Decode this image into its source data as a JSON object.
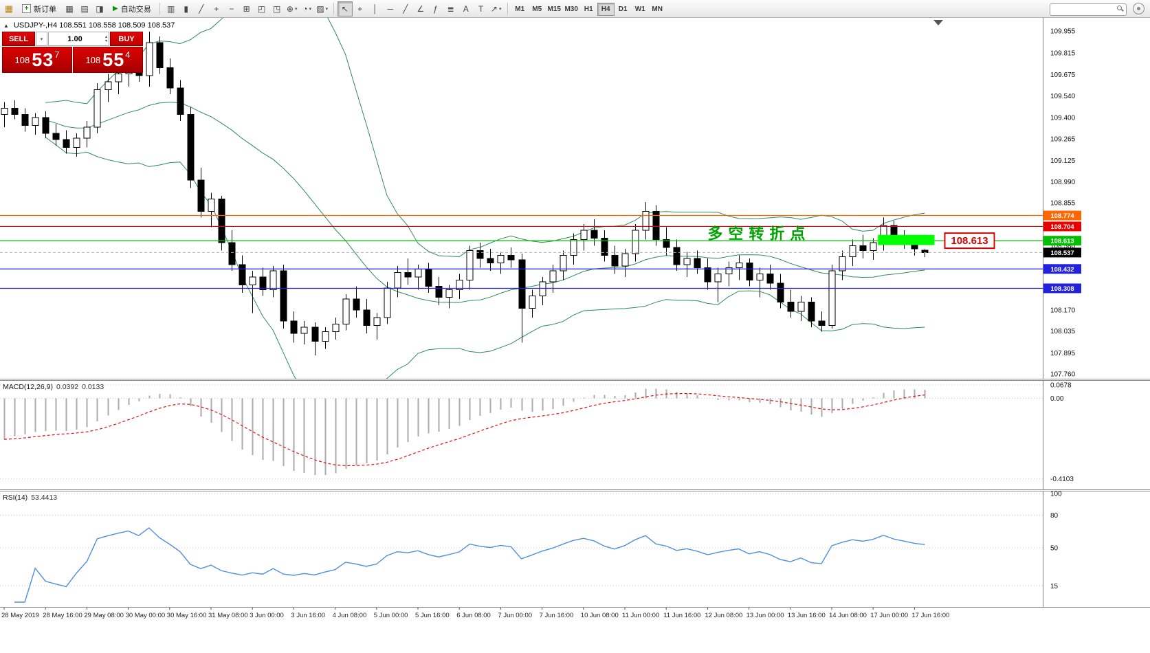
{
  "toolbar": {
    "new_order_label": "新订单",
    "autotrading_label": "自动交易",
    "left_icons": [
      "new-chart",
      "profiles",
      "market-watch"
    ],
    "chart_buttons": [
      "bar-chart",
      "candlesticks",
      "line-chart",
      "zoom-in",
      "zoom-out",
      "tile-windows",
      "arrange-windows",
      "cascade-windows",
      "indicators",
      "periods",
      "templates"
    ],
    "tool_buttons": [
      "cursor",
      "crosshair",
      "vertical-line",
      "horizontal-line",
      "trendline",
      "equidistant-channel",
      "fibonacci",
      "cycle-lines",
      "text",
      "text-label",
      "arrows"
    ],
    "dropdown_buttons": [
      "indicators",
      "periods",
      "templates",
      "arrows"
    ],
    "active_tool": "cursor",
    "timeframes": [
      "M1",
      "M5",
      "M15",
      "M30",
      "H1",
      "H4",
      "D1",
      "W1",
      "MN"
    ],
    "active_timeframe": "H4"
  },
  "quote_panel": {
    "sell_label": "SELL",
    "buy_label": "BUY",
    "volume": "1.00",
    "sell_price": {
      "prefix": "108",
      "big": "53",
      "sup": "7"
    },
    "buy_price": {
      "prefix": "108",
      "big": "55",
      "sup": "4"
    }
  },
  "symbol_header": "USDJPY-,H4  108.551 108.558 108.509 108.537",
  "macd": {
    "label": "MACD(12,26,9)",
    "value_main": "0.0392",
    "value_signal": "0.0133",
    "axis": [
      "0.0678",
      "0.00",
      "-0.4103"
    ]
  },
  "rsi": {
    "label": "RSI(14)",
    "value": "53.4413",
    "axis": [
      "100",
      "80",
      "50",
      "15"
    ]
  },
  "colors": {
    "trade_red": "#c00000",
    "candle_up": "#ffffff",
    "candle_down": "#000000",
    "bollinger": "#2e8b57",
    "macd_histogram": "#ababab",
    "macd_signal": "#e01010",
    "rsi_line": "#4f8fdb",
    "highlight_green": "#00ff00",
    "annotation_green": "#00a400",
    "callout_red": "#d60000"
  },
  "chart_data": {
    "type": "candlestick",
    "title": "USDJPY-,H4",
    "ylim": [
      107.725,
      110.03
    ],
    "price_axis_labels": [
      "109.955",
      "109.815",
      "109.675",
      "109.540",
      "109.400",
      "109.265",
      "109.125",
      "108.990",
      "108.855",
      "108.715",
      "108.580",
      "108.440",
      "108.305",
      "108.170",
      "108.035",
      "107.895",
      "107.760"
    ],
    "time_labels": [
      "28 May 2019",
      "28 May 16:00",
      "29 May 08:00",
      "30 May 00:00",
      "30 May 16:00",
      "31 May 08:00",
      "3 Jun 00:00",
      "3 Jun 16:00",
      "4 Jun 08:00",
      "5 Jun 00:00",
      "5 Jun 16:00",
      "6 Jun 08:00",
      "7 Jun 00:00",
      "7 Jun 16:00",
      "10 Jun 08:00",
      "11 Jun 00:00",
      "11 Jun 16:00",
      "12 Jun 08:00",
      "13 Jun 00:00",
      "13 Jun 16:00",
      "14 Jun 08:00",
      "17 Jun 00:00",
      "17 Jun 16:00"
    ],
    "candles": [
      [
        109.42,
        109.5,
        109.34,
        109.46
      ],
      [
        109.46,
        109.51,
        109.39,
        109.42
      ],
      [
        109.42,
        109.46,
        109.31,
        109.35
      ],
      [
        109.35,
        109.43,
        109.29,
        109.4
      ],
      [
        109.4,
        109.44,
        109.27,
        109.3
      ],
      [
        109.3,
        109.36,
        109.22,
        109.26
      ],
      [
        109.26,
        109.32,
        109.17,
        109.21
      ],
      [
        109.21,
        109.3,
        109.15,
        109.27
      ],
      [
        109.27,
        109.38,
        109.21,
        109.34
      ],
      [
        109.34,
        109.62,
        109.3,
        109.58
      ],
      [
        109.58,
        109.68,
        109.5,
        109.63
      ],
      [
        109.63,
        109.72,
        109.55,
        109.68
      ],
      [
        109.68,
        109.78,
        109.6,
        109.73
      ],
      [
        109.73,
        109.8,
        109.63,
        109.67
      ],
      [
        109.67,
        109.95,
        109.6,
        109.88
      ],
      [
        109.88,
        109.92,
        109.68,
        109.72
      ],
      [
        109.72,
        109.78,
        109.55,
        109.59
      ],
      [
        109.59,
        109.64,
        109.38,
        109.42
      ],
      [
        109.42,
        109.47,
        108.95,
        109.0
      ],
      [
        109.0,
        109.08,
        108.76,
        108.8
      ],
      [
        108.8,
        108.92,
        108.7,
        108.88
      ],
      [
        108.88,
        108.9,
        108.55,
        108.6
      ],
      [
        108.6,
        108.68,
        108.42,
        108.46
      ],
      [
        108.46,
        108.52,
        108.28,
        108.33
      ],
      [
        108.33,
        108.42,
        108.15,
        108.38
      ],
      [
        108.38,
        108.44,
        108.26,
        108.3
      ],
      [
        108.3,
        108.45,
        108.25,
        108.42
      ],
      [
        108.42,
        108.46,
        108.05,
        108.1
      ],
      [
        108.1,
        108.16,
        107.96,
        108.02
      ],
      [
        108.02,
        108.1,
        107.95,
        108.06
      ],
      [
        108.06,
        108.09,
        107.88,
        107.97
      ],
      [
        107.97,
        108.06,
        107.92,
        108.03
      ],
      [
        108.03,
        108.12,
        107.98,
        108.08
      ],
      [
        108.08,
        108.27,
        108.04,
        108.24
      ],
      [
        108.24,
        108.32,
        108.12,
        108.17
      ],
      [
        108.17,
        108.24,
        108.02,
        108.07
      ],
      [
        108.07,
        108.15,
        107.98,
        108.12
      ],
      [
        108.12,
        108.35,
        108.08,
        108.31
      ],
      [
        108.31,
        108.45,
        108.25,
        108.41
      ],
      [
        108.41,
        108.5,
        108.33,
        108.38
      ],
      [
        108.38,
        108.46,
        108.3,
        108.43
      ],
      [
        108.43,
        108.47,
        108.28,
        108.32
      ],
      [
        108.32,
        108.38,
        108.2,
        108.25
      ],
      [
        108.25,
        108.33,
        108.18,
        108.3
      ],
      [
        108.3,
        108.4,
        108.24,
        108.36
      ],
      [
        108.36,
        108.58,
        108.3,
        108.55
      ],
      [
        108.55,
        108.6,
        108.44,
        108.5
      ],
      [
        108.5,
        108.56,
        108.42,
        108.47
      ],
      [
        108.47,
        108.54,
        108.4,
        108.52
      ],
      [
        108.52,
        108.57,
        108.44,
        108.49
      ],
      [
        108.49,
        108.53,
        107.96,
        108.18
      ],
      [
        108.18,
        108.3,
        108.12,
        108.26
      ],
      [
        108.26,
        108.38,
        108.2,
        108.35
      ],
      [
        108.35,
        108.46,
        108.28,
        108.42
      ],
      [
        108.42,
        108.55,
        108.36,
        108.52
      ],
      [
        108.52,
        108.66,
        108.46,
        108.62
      ],
      [
        108.62,
        108.72,
        108.55,
        108.68
      ],
      [
        108.68,
        108.75,
        108.58,
        108.63
      ],
      [
        108.63,
        108.68,
        108.48,
        108.52
      ],
      [
        108.52,
        108.58,
        108.4,
        108.45
      ],
      [
        108.45,
        108.56,
        108.38,
        108.53
      ],
      [
        108.53,
        108.72,
        108.48,
        108.68
      ],
      [
        108.68,
        108.86,
        108.62,
        108.8
      ],
      [
        108.8,
        108.84,
        108.58,
        108.62
      ],
      [
        108.62,
        108.7,
        108.52,
        108.57
      ],
      [
        108.57,
        108.62,
        108.42,
        108.46
      ],
      [
        108.46,
        108.54,
        108.38,
        108.5
      ],
      [
        108.5,
        108.55,
        108.4,
        108.44
      ],
      [
        108.44,
        108.5,
        108.3,
        108.35
      ],
      [
        108.35,
        108.44,
        108.22,
        108.4
      ],
      [
        108.4,
        108.48,
        108.32,
        108.44
      ],
      [
        108.44,
        108.52,
        108.36,
        108.47
      ],
      [
        108.47,
        108.5,
        108.32,
        108.36
      ],
      [
        108.36,
        108.44,
        108.25,
        108.4
      ],
      [
        108.4,
        108.46,
        108.3,
        108.34
      ],
      [
        108.34,
        108.4,
        108.18,
        108.22
      ],
      [
        108.22,
        108.3,
        108.12,
        108.16
      ],
      [
        108.16,
        108.26,
        108.1,
        108.22
      ],
      [
        108.22,
        108.25,
        108.06,
        108.1
      ],
      [
        108.1,
        108.16,
        108.03,
        108.07
      ],
      [
        108.07,
        108.46,
        108.05,
        108.42
      ],
      [
        108.42,
        108.55,
        108.36,
        108.51
      ],
      [
        108.51,
        108.62,
        108.45,
        108.58
      ],
      [
        108.58,
        108.65,
        108.5,
        108.55
      ],
      [
        108.55,
        108.63,
        108.49,
        108.6
      ],
      [
        108.6,
        108.76,
        108.55,
        108.71
      ],
      [
        108.71,
        108.74,
        108.6,
        108.64
      ],
      [
        108.64,
        108.68,
        108.56,
        108.6
      ],
      [
        108.6,
        108.64,
        108.52,
        108.56
      ],
      [
        108.551,
        108.558,
        108.509,
        108.537
      ]
    ],
    "hlines": [
      {
        "price": 108.774,
        "color": "#ff6600"
      },
      {
        "price": 108.704,
        "color": "#e80000"
      },
      {
        "price": 108.613,
        "color": "#00c000"
      },
      {
        "price": 108.432,
        "color": "#2222dd"
      },
      {
        "price": 108.308,
        "color": "#2222dd"
      }
    ],
    "bid": {
      "price": 108.537,
      "label": "108.537"
    },
    "highlight_zone": {
      "bar_start": 84.8,
      "bar_end": 89.6,
      "price_top": 108.65,
      "price_bottom": 108.585,
      "color": "#00ff00"
    },
    "annotation": {
      "text": "多空转折点",
      "bar": 68,
      "price": 108.66,
      "color": "#00a400"
    },
    "callout": {
      "text": "108.613",
      "price": 108.613
    },
    "bollinger": {
      "period": 20,
      "deviation": 2
    },
    "macd_params": {
      "fast": 12,
      "slow": 26,
      "signal": 9
    },
    "rsi_params": {
      "period": 14
    }
  }
}
